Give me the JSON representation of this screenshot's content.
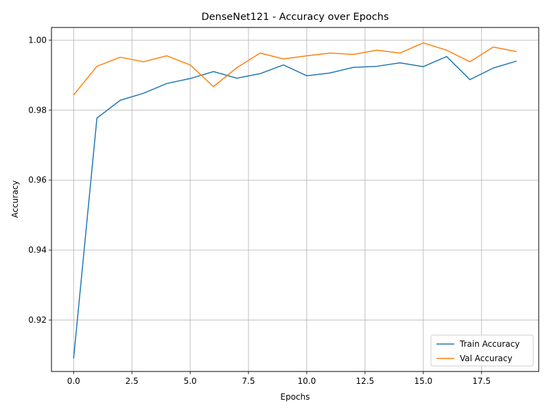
{
  "chart_data": {
    "type": "line",
    "title": "DenseNet121 - Accuracy over Epochs",
    "xlabel": "Epochs",
    "ylabel": "Accuracy",
    "xlim": [
      -0.95,
      19.95
    ],
    "ylim": [
      0.9053,
      1.0036
    ],
    "xticks": [
      0.0,
      2.5,
      5.0,
      7.5,
      10.0,
      12.5,
      15.0,
      17.5
    ],
    "xtick_labels": [
      "0.0",
      "2.5",
      "5.0",
      "7.5",
      "10.0",
      "12.5",
      "15.0",
      "17.5"
    ],
    "yticks": [
      0.92,
      0.94,
      0.96,
      0.98,
      1.0
    ],
    "ytick_labels": [
      "0.92",
      "0.94",
      "0.96",
      "0.98",
      "1.00"
    ],
    "grid": true,
    "legend_position": "bottom-right",
    "x": [
      0,
      1,
      2,
      3,
      4,
      5,
      6,
      7,
      8,
      9,
      10,
      11,
      12,
      13,
      14,
      15,
      16,
      17,
      18,
      19
    ],
    "series": [
      {
        "name": "Train Accuracy",
        "color": "#1f77b4",
        "values": [
          0.909,
          0.9777,
          0.9828,
          0.9848,
          0.9876,
          0.989,
          0.991,
          0.9891,
          0.9904,
          0.9929,
          0.9898,
          0.9906,
          0.9922,
          0.9925,
          0.9935,
          0.9924,
          0.9953,
          0.9887,
          0.992,
          0.994
        ]
      },
      {
        "name": "Val Accuracy",
        "color": "#ff7f0e",
        "values": [
          0.9843,
          0.9925,
          0.9951,
          0.9938,
          0.9955,
          0.9929,
          0.9867,
          0.9921,
          0.9963,
          0.9946,
          0.9955,
          0.9963,
          0.9959,
          0.9971,
          0.9963,
          0.9992,
          0.9971,
          0.9938,
          0.998,
          0.9967
        ]
      }
    ]
  }
}
